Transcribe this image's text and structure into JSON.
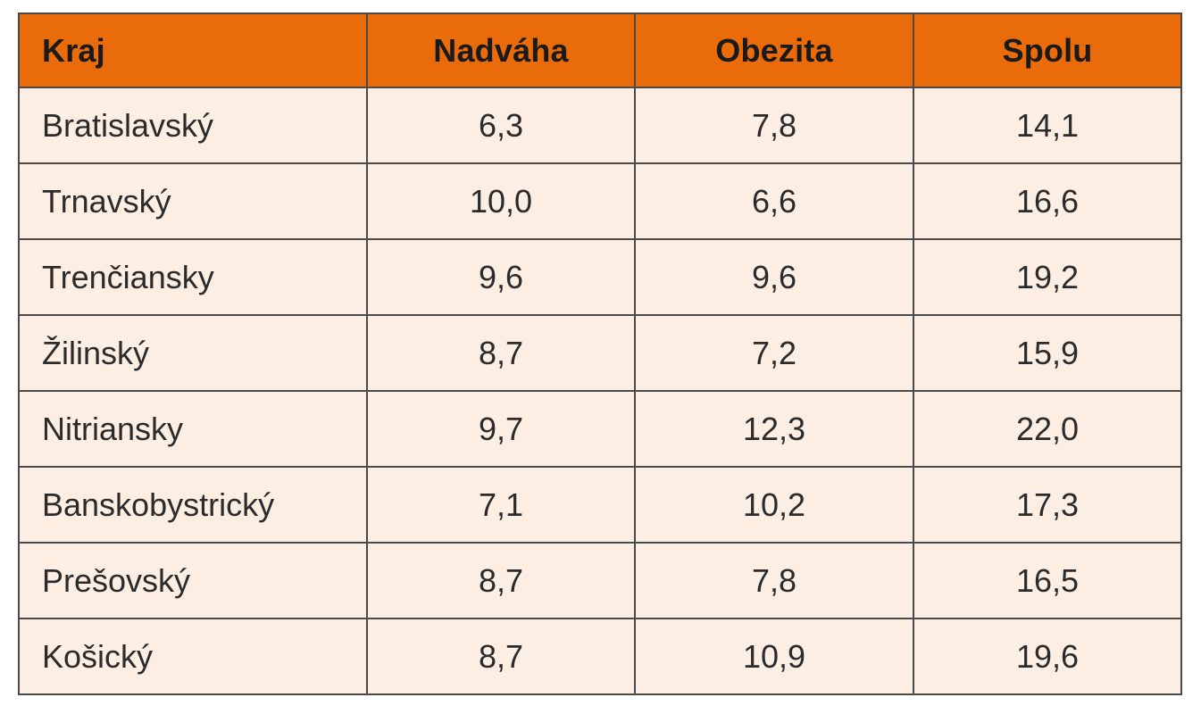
{
  "table": {
    "headers": [
      "Kraj",
      "Nadváha",
      "Obezita",
      "Spolu"
    ],
    "rows": [
      [
        "Bratislavský",
        "6,3",
        "7,8",
        "14,1"
      ],
      [
        "Trnavský",
        "10,0",
        "6,6",
        "16,6"
      ],
      [
        "Trenčiansky",
        "9,6",
        "9,6",
        "19,2"
      ],
      [
        "Žilinský",
        "8,7",
        "7,2",
        "15,9"
      ],
      [
        "Nitriansky",
        "9,7",
        "12,3",
        "22,0"
      ],
      [
        "Banskobystrický",
        "7,1",
        "10,2",
        "17,3"
      ],
      [
        "Prešovský",
        "8,7",
        "7,8",
        "16,5"
      ],
      [
        "Košický",
        "8,7",
        "10,9",
        "19,6"
      ]
    ]
  },
  "colors": {
    "header_bg": "#e96b0a",
    "row_bg": "#fdeee3",
    "border": "#4a4a4a"
  }
}
